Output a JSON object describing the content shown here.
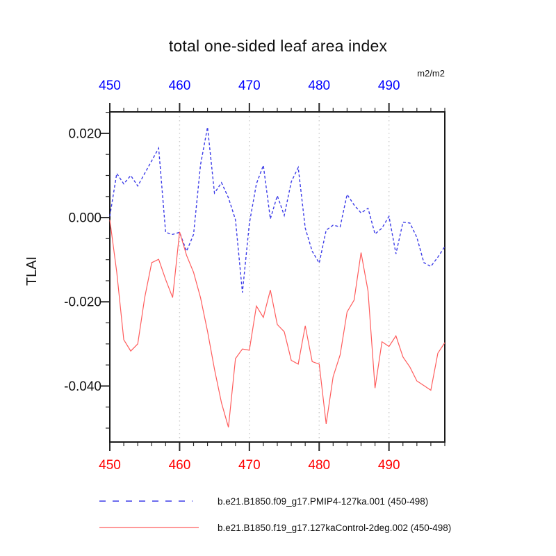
{
  "title": "total one-sided leaf area index",
  "units_label": "m2/m2",
  "y_axis_title": "TLAI",
  "x_tick_labels": [
    "450",
    "460",
    "470",
    "480",
    "490"
  ],
  "y_tick_labels": [
    "0.020",
    "0.000",
    "-0.020",
    "-0.040"
  ],
  "colors": {
    "frame": "#1a1a1a",
    "tick": "#2a2a2a",
    "gridline": "#cccccc",
    "top_axis_labels": "#0000ff",
    "bottom_axis_labels": "#ff0000",
    "y_axis_labels": "#111111",
    "blue_line": "#3c3ce8",
    "red_line": "#ff5c5c"
  },
  "chart_data": {
    "type": "line",
    "title": "total one-sided leaf area index",
    "ylabel": "TLAI",
    "units": "m2/m2",
    "xlim": [
      450,
      498
    ],
    "ylim": [
      -0.0533,
      0.0251
    ],
    "x_major_ticks": [
      450,
      460,
      470,
      480,
      490
    ],
    "x_minor_step": 2,
    "y_major_ticks": [
      0.02,
      0.0,
      -0.02,
      -0.04
    ],
    "y_minor_step": 0.005,
    "x_gridlines": [
      460,
      470,
      480,
      490
    ],
    "grid": "vertical-dotted",
    "legend_position": "below",
    "x": [
      450,
      451,
      452,
      453,
      454,
      455,
      456,
      457,
      458,
      459,
      460,
      461,
      462,
      463,
      464,
      465,
      466,
      467,
      468,
      469,
      470,
      471,
      472,
      473,
      474,
      475,
      476,
      477,
      478,
      479,
      480,
      481,
      482,
      483,
      484,
      485,
      486,
      487,
      488,
      489,
      490,
      491,
      492,
      493,
      494,
      495,
      496,
      497,
      498
    ],
    "series": [
      {
        "name": "b.e21.B1850.f09_g17.PMIP4-127ka.001 (450-498)",
        "color": "#3c3ce8",
        "style": "dashed",
        "dash": "4 3",
        "width": 1.4,
        "values": [
          0.0003,
          0.0105,
          0.008,
          0.01,
          0.0075,
          0.0105,
          0.0135,
          0.0165,
          -0.0035,
          -0.004,
          -0.0035,
          -0.008,
          -0.004,
          0.0125,
          0.0215,
          0.0058,
          0.0083,
          0.0047,
          -0.0005,
          -0.0178,
          -0.0014,
          0.008,
          0.0124,
          -0.0003,
          0.0052,
          0.0005,
          0.0085,
          0.0119,
          -0.0025,
          -0.008,
          -0.0108,
          -0.003,
          -0.0018,
          -0.0022,
          0.0055,
          0.003,
          0.0011,
          0.0022,
          -0.0039,
          -0.0025,
          0.0003,
          -0.0086,
          -0.0011,
          -0.0013,
          -0.0047,
          -0.0107,
          -0.0116,
          -0.0094,
          -0.0069
        ]
      },
      {
        "name": "b.e21.B1850.f19_g17.127kaControl-2deg.002 (450-498)",
        "color": "#ff5c5c",
        "style": "solid",
        "dash": "",
        "width": 1.2,
        "values": [
          -0.0005,
          -0.013,
          -0.029,
          -0.0317,
          -0.03,
          -0.019,
          -0.0107,
          -0.0099,
          -0.0147,
          -0.019,
          -0.0034,
          -0.009,
          -0.013,
          -0.019,
          -0.027,
          -0.036,
          -0.044,
          -0.0498,
          -0.0335,
          -0.0312,
          -0.0315,
          -0.021,
          -0.0237,
          -0.0172,
          -0.0254,
          -0.0271,
          -0.0339,
          -0.0348,
          -0.0257,
          -0.0342,
          -0.0348,
          -0.049,
          -0.0378,
          -0.0326,
          -0.0224,
          -0.0196,
          -0.0083,
          -0.0174,
          -0.0405,
          -0.0295,
          -0.0306,
          -0.0281,
          -0.0331,
          -0.0355,
          -0.0388,
          -0.0399,
          -0.041,
          -0.0322,
          -0.0297
        ]
      }
    ]
  }
}
